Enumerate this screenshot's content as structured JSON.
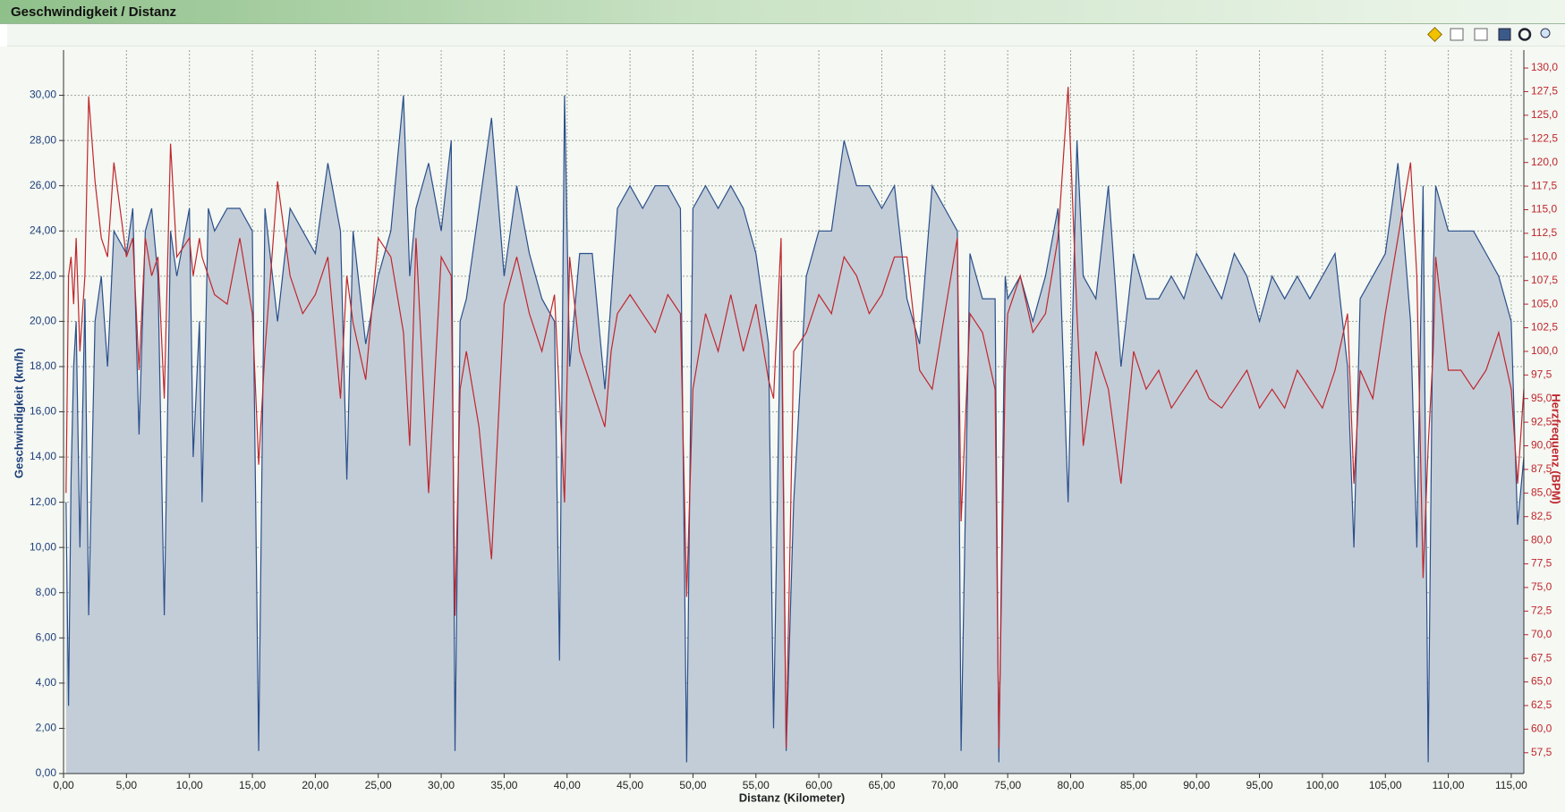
{
  "chart_data": {
    "type": "area",
    "title": "Geschwindigkeit / Distanz",
    "xlabel": "Distanz (Kilometer)",
    "ylabel": "Geschwindigkeit (km/h)",
    "y2label": "Herzfrequenz (BPM)",
    "grid": true,
    "x": [
      0.2,
      0.4,
      0.6,
      0.8,
      1,
      1.3,
      1.7,
      2,
      2.5,
      3,
      3.5,
      4,
      5,
      5.5,
      6,
      6.5,
      7,
      7.5,
      8,
      8.5,
      9,
      10,
      10.3,
      10.8,
      11,
      11.5,
      12,
      13,
      14,
      15,
      15.5,
      16,
      17,
      18,
      19,
      20,
      21,
      22,
      22.5,
      23,
      24,
      25,
      26,
      27,
      27.5,
      28,
      29,
      30,
      30.8,
      31.1,
      31.5,
      32,
      33,
      34,
      35,
      36,
      37,
      38,
      39,
      39.4,
      39.8,
      40.2,
      41,
      42,
      43,
      43.5,
      44,
      45,
      46,
      47,
      48,
      49,
      49.5,
      50,
      51,
      52,
      53,
      54,
      55,
      56,
      56.4,
      57,
      57.4,
      58,
      59,
      60,
      61,
      62,
      63,
      64,
      65,
      66,
      67,
      68,
      69,
      70,
      71,
      71.3,
      72,
      73,
      74,
      74.3,
      74.8,
      75,
      76,
      77,
      78,
      79,
      79.8,
      80.5,
      81,
      82,
      83,
      84,
      85,
      86,
      87,
      88,
      89,
      90,
      91,
      92,
      93,
      94,
      95,
      96,
      97,
      98,
      99,
      100,
      101,
      102,
      102.5,
      103,
      104,
      105,
      106,
      107,
      107.5,
      108,
      108.4,
      108.8,
      109,
      110,
      111,
      112,
      113,
      114,
      115,
      115.5,
      116
    ],
    "series": [
      {
        "name": "Geschwindigkeit",
        "color": "#2a4f8a",
        "fill": "#c3cdd8",
        "values": [
          12,
          3,
          13,
          18,
          20,
          10,
          21,
          7,
          20,
          22,
          18,
          24,
          23,
          25,
          15,
          24,
          25,
          22,
          7,
          24,
          22,
          25,
          14,
          20,
          12,
          25,
          24,
          25,
          25,
          24,
          1,
          25,
          20,
          25,
          24,
          23,
          27,
          24,
          13,
          24,
          19,
          22,
          24,
          30,
          22,
          25,
          27,
          24,
          28,
          1,
          20,
          21,
          25,
          29,
          22,
          26,
          23,
          21,
          20,
          5,
          30,
          18,
          23,
          23,
          17,
          21,
          25,
          26,
          25,
          26,
          26,
          25,
          0.5,
          25,
          26,
          25,
          26,
          25,
          23,
          19,
          2,
          22,
          1,
          12,
          22,
          24,
          24,
          28,
          26,
          26,
          25,
          26,
          21,
          19,
          26,
          25,
          24,
          1,
          23,
          21,
          21,
          0.5,
          22,
          21,
          22,
          20,
          22,
          25,
          12,
          28,
          22,
          21,
          26,
          18,
          23,
          21,
          21,
          22,
          21,
          23,
          22,
          21,
          23,
          22,
          20,
          22,
          21,
          22,
          21,
          22,
          23,
          18,
          10,
          21,
          22,
          23,
          27,
          20,
          10,
          26,
          0.5,
          22,
          26,
          24,
          24,
          24,
          23,
          22,
          20,
          11,
          14
        ]
      },
      {
        "name": "Herzfrequenz",
        "color": "#c0262c",
        "axis": "y2",
        "type": "line",
        "values": [
          85,
          108,
          110,
          105,
          112,
          100,
          108,
          127,
          118,
          112,
          110,
          120,
          110,
          112,
          98,
          112,
          108,
          110,
          95,
          122,
          110,
          112,
          108,
          112,
          110,
          108,
          106,
          105,
          112,
          104,
          88,
          100,
          118,
          108,
          104,
          106,
          110,
          95,
          108,
          103,
          97,
          112,
          110,
          102,
          90,
          112,
          85,
          110,
          108,
          72,
          96,
          100,
          92,
          78,
          105,
          110,
          104,
          100,
          106,
          95,
          84,
          110,
          100,
          96,
          92,
          100,
          104,
          106,
          104,
          102,
          106,
          104,
          74,
          96,
          104,
          100,
          106,
          100,
          105,
          97,
          95,
          112,
          58,
          100,
          102,
          106,
          104,
          110,
          108,
          104,
          106,
          110,
          110,
          98,
          96,
          104,
          112,
          82,
          104,
          102,
          96,
          58,
          98,
          104,
          108,
          102,
          104,
          112,
          128,
          104,
          90,
          100,
          96,
          86,
          100,
          96,
          98,
          94,
          96,
          98,
          95,
          94,
          96,
          98,
          94,
          96,
          94,
          98,
          96,
          94,
          98,
          104,
          86,
          98,
          95,
          104,
          112,
          120,
          108,
          76,
          90,
          100,
          110,
          98,
          98,
          96,
          98,
          102,
          96,
          86,
          96
        ]
      }
    ],
    "xlim": [
      0,
      116
    ],
    "xticks": [
      {
        "value": 0,
        "label": "0,00"
      },
      {
        "value": 5,
        "label": "5,00"
      },
      {
        "value": 10,
        "label": "10,00"
      },
      {
        "value": 15,
        "label": "15,00"
      },
      {
        "value": 20,
        "label": "20,00"
      },
      {
        "value": 25,
        "label": "25,00"
      },
      {
        "value": 30,
        "label": "30,00"
      },
      {
        "value": 35,
        "label": "35,00"
      },
      {
        "value": 40,
        "label": "40,00"
      },
      {
        "value": 45,
        "label": "45,00"
      },
      {
        "value": 50,
        "label": "50,00"
      },
      {
        "value": 55,
        "label": "55,00"
      },
      {
        "value": 60,
        "label": "60,00"
      },
      {
        "value": 65,
        "label": "65,00"
      },
      {
        "value": 70,
        "label": "70,00"
      },
      {
        "value": 75,
        "label": "75,00"
      },
      {
        "value": 80,
        "label": "80,00"
      },
      {
        "value": 85,
        "label": "85,00"
      },
      {
        "value": 90,
        "label": "90,00"
      },
      {
        "value": 95,
        "label": "95,00"
      },
      {
        "value": 100,
        "label": "100,00"
      },
      {
        "value": 105,
        "label": "105,00"
      },
      {
        "value": 110,
        "label": "110,00"
      },
      {
        "value": 115,
        "label": "115,00"
      }
    ],
    "ylim": [
      0,
      32
    ],
    "yticks": [
      {
        "value": 0,
        "label": "0,00"
      },
      {
        "value": 2,
        "label": "2,00"
      },
      {
        "value": 4,
        "label": "4,00"
      },
      {
        "value": 6,
        "label": "6,00"
      },
      {
        "value": 8,
        "label": "8,00"
      },
      {
        "value": 10,
        "label": "10,00"
      },
      {
        "value": 12,
        "label": "12,00"
      },
      {
        "value": 14,
        "label": "14,00"
      },
      {
        "value": 16,
        "label": "16,00"
      },
      {
        "value": 18,
        "label": "18,00"
      },
      {
        "value": 20,
        "label": "20,00"
      },
      {
        "value": 22,
        "label": "22,00"
      },
      {
        "value": 24,
        "label": "24,00"
      },
      {
        "value": 26,
        "label": "26,00"
      },
      {
        "value": 28,
        "label": "28,00"
      },
      {
        "value": 30,
        "label": "30,00"
      }
    ],
    "y2lim": [
      55.3,
      131.9
    ],
    "y2ticks": [
      {
        "value": 57.5,
        "label": "57,5"
      },
      {
        "value": 60,
        "label": "60,0"
      },
      {
        "value": 62.5,
        "label": "62,5"
      },
      {
        "value": 65,
        "label": "65,0"
      },
      {
        "value": 67.5,
        "label": "67,5"
      },
      {
        "value": 70,
        "label": "70,0"
      },
      {
        "value": 72.5,
        "label": "72,5"
      },
      {
        "value": 75,
        "label": "75,0"
      },
      {
        "value": 77.5,
        "label": "77,5"
      },
      {
        "value": 80,
        "label": "80,0"
      },
      {
        "value": 82.5,
        "label": "82,5"
      },
      {
        "value": 85,
        "label": "85,0"
      },
      {
        "value": 87.5,
        "label": "87,5"
      },
      {
        "value": 90,
        "label": "90,0"
      },
      {
        "value": 92.5,
        "label": "92,5"
      },
      {
        "value": 95,
        "label": "95,0"
      },
      {
        "value": 97.5,
        "label": "97,5"
      },
      {
        "value": 100,
        "label": "100,0"
      },
      {
        "value": 102.5,
        "label": "102,5"
      },
      {
        "value": 105,
        "label": "105,0"
      },
      {
        "value": 107.5,
        "label": "107,5"
      },
      {
        "value": 110,
        "label": "110,0"
      },
      {
        "value": 112.5,
        "label": "112,5"
      },
      {
        "value": 115,
        "label": "115,0"
      },
      {
        "value": 117.5,
        "label": "117,5"
      },
      {
        "value": 120,
        "label": "120,0"
      },
      {
        "value": 122.5,
        "label": "122,5"
      },
      {
        "value": 125,
        "label": "125,0"
      },
      {
        "value": 127.5,
        "label": "127,5"
      },
      {
        "value": 130,
        "label": "130,0"
      }
    ]
  }
}
